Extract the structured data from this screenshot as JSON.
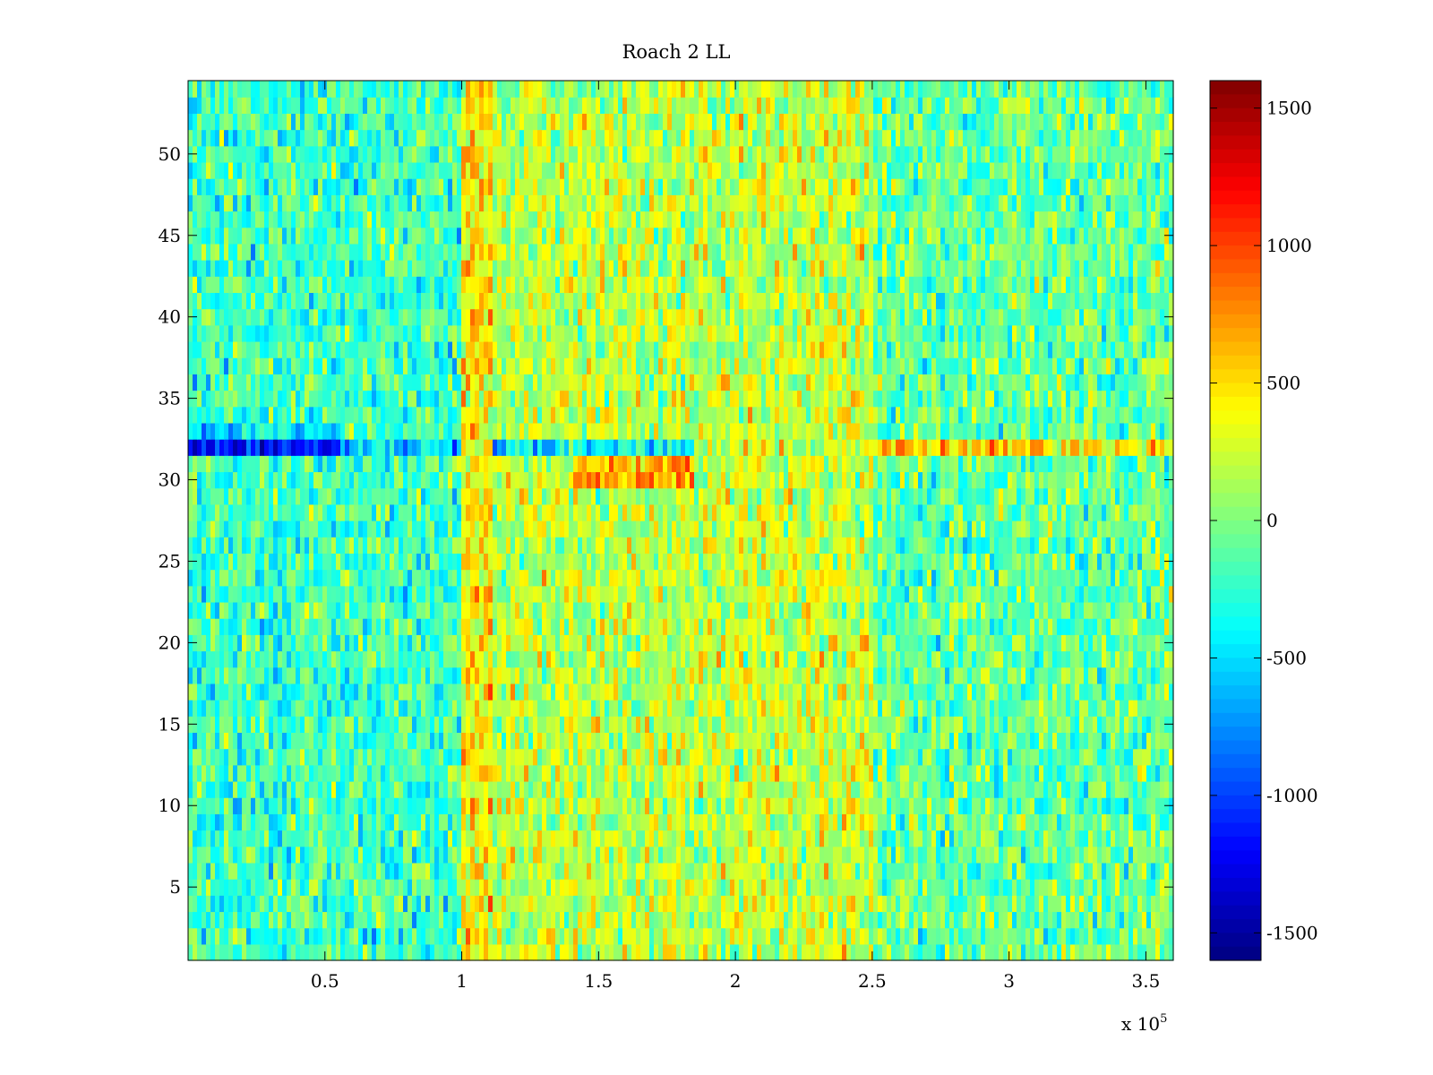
{
  "chart_data": {
    "type": "heatmap",
    "title": "Roach 2 LL",
    "xlabel": "",
    "ylabel": "",
    "colormap": "jet",
    "x_range": [
      0,
      360000
    ],
    "y_range": [
      0.5,
      54.5
    ],
    "x_ticks": [
      0.5,
      1,
      1.5,
      2,
      2.5,
      3,
      3.5
    ],
    "x_tick_labels": [
      "0.5",
      "1",
      "1.5",
      "2",
      "2.5",
      "3",
      "3.5"
    ],
    "x_exponent_label": "x 10",
    "x_exponent": "5",
    "y_ticks": [
      5,
      10,
      15,
      20,
      25,
      30,
      35,
      40,
      45,
      50
    ],
    "y_tick_labels": [
      "5",
      "10",
      "15",
      "20",
      "25",
      "30",
      "35",
      "40",
      "45",
      "50"
    ],
    "n_rows": 54,
    "color_limits": [
      -1600,
      1600
    ],
    "colorbar_ticks": [
      -1500,
      -1000,
      -500,
      0,
      500,
      1000,
      1500
    ],
    "colorbar_tick_labels": [
      "-1500",
      "-1000",
      "-500",
      "0",
      "500",
      "1000",
      "1500"
    ],
    "approx_mean_by_x_region": [
      {
        "x_start": 0,
        "x_end": 100000,
        "mean": -200
      },
      {
        "x_start": 100000,
        "x_end": 112000,
        "mean": 450
      },
      {
        "x_start": 112000,
        "x_end": 200000,
        "mean": 180
      },
      {
        "x_start": 200000,
        "x_end": 250000,
        "mean": 230
      },
      {
        "x_start": 250000,
        "x_end": 360000,
        "mean": -80
      }
    ],
    "row_anomalies": [
      {
        "row": 32,
        "x_start": 0,
        "x_end": 55000,
        "mean": -1100
      },
      {
        "row": 32,
        "x_start": 55000,
        "x_end": 100000,
        "mean": -550
      },
      {
        "row": 32,
        "x_start": 112000,
        "x_end": 185000,
        "mean": -450
      },
      {
        "row": 32,
        "x_start": 245000,
        "x_end": 360000,
        "mean": 520
      },
      {
        "row": 30,
        "x_start": 140000,
        "x_end": 185000,
        "mean": 700
      },
      {
        "row": 31,
        "x_start": 140000,
        "x_end": 185000,
        "mean": 650
      },
      {
        "row": 33,
        "x_start": 0,
        "x_end": 55000,
        "mean": -450
      }
    ]
  }
}
